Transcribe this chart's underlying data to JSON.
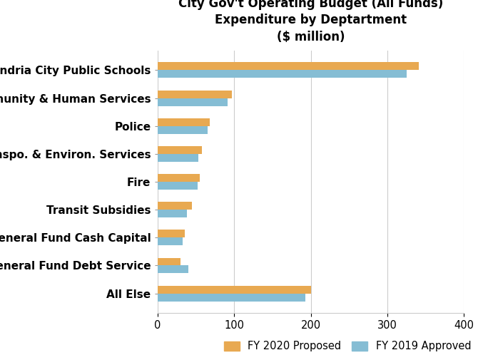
{
  "title": "City Gov't Operating Budget (All Funds)\nExpenditure by Deptartment\n($ million)",
  "categories": [
    "All Else",
    "General Fund Debt Service",
    "General Fund Cash Capital",
    "Transit Subsidies",
    "Fire",
    "Transpo. & Environ. Services",
    "Police",
    "Community & Human Services",
    "Alexandria City Public Schools"
  ],
  "fy2020": [
    200,
    30,
    35,
    45,
    55,
    58,
    68,
    97,
    341
  ],
  "fy2019": [
    193,
    40,
    33,
    38,
    52,
    53,
    65,
    91,
    325
  ],
  "color_2020": "#E8A951",
  "color_2019": "#85BDD4",
  "xlim": [
    0,
    400
  ],
  "xticks": [
    0,
    100,
    200,
    300,
    400
  ],
  "legend_labels": [
    "FY 2020 Proposed",
    "FY 2019 Approved"
  ],
  "background_color": "#ffffff",
  "bar_height": 0.28,
  "title_fontsize": 12,
  "label_fontsize": 11,
  "tick_fontsize": 10.5
}
